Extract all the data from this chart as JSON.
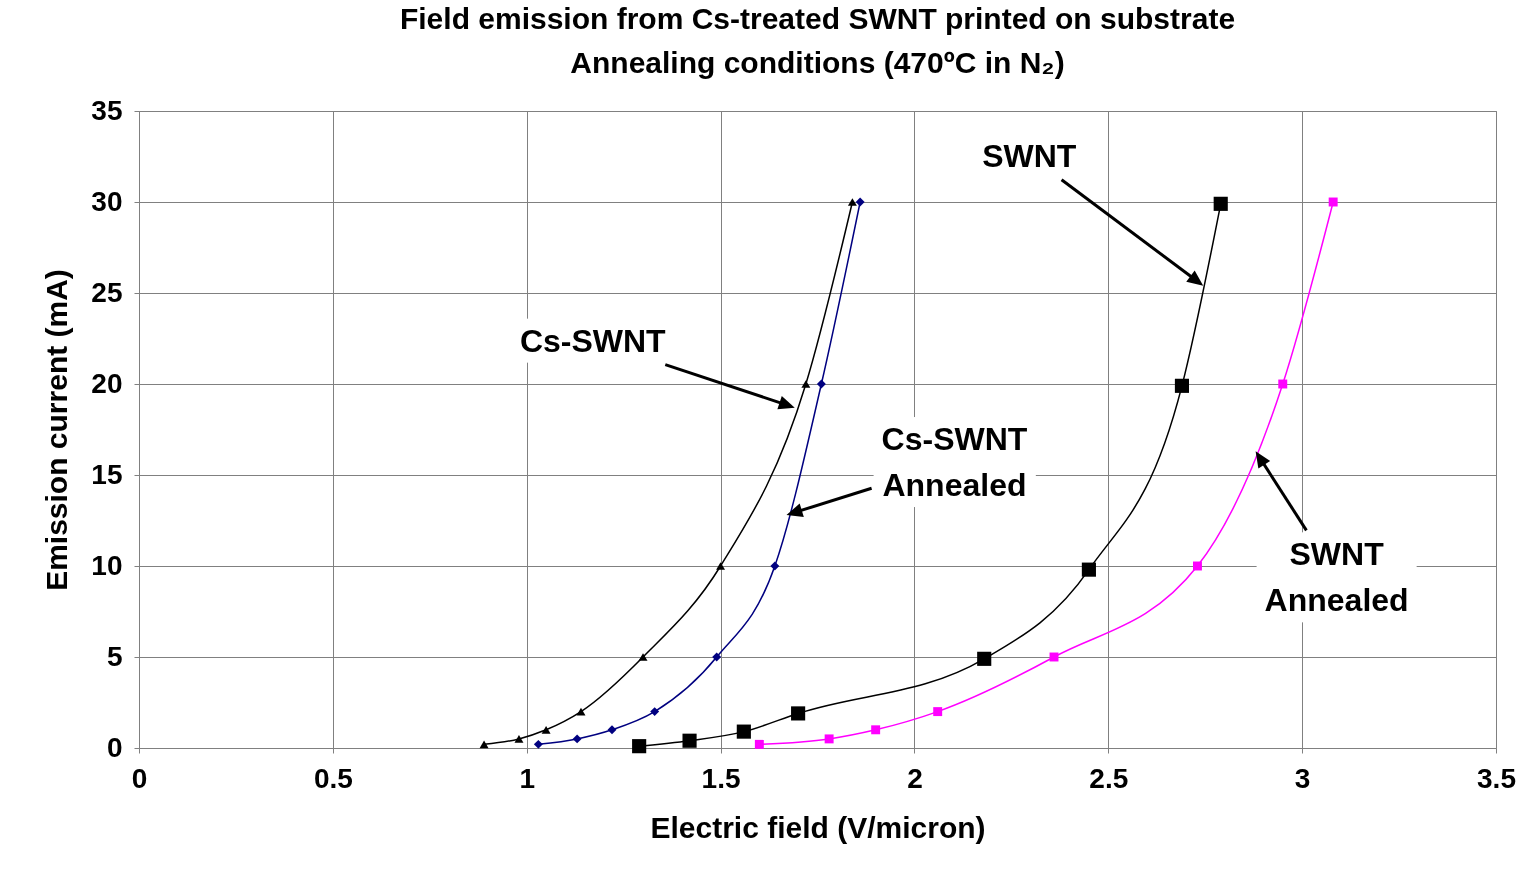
{
  "chart_data": {
    "type": "line",
    "title": "Field emission from Cs-treated SWNT printed on substrate",
    "subtitle": "Annealing conditions (470ºC in N₂)",
    "xlabel": "Electric field (V/micron)",
    "ylabel": "Emission current (mA)",
    "xlim": [
      0,
      3.5
    ],
    "xticks": [
      0,
      0.5,
      1,
      1.5,
      2,
      2.5,
      3,
      3.5
    ],
    "ylim": [
      0,
      35
    ],
    "yticks": [
      0,
      5,
      10,
      15,
      20,
      25,
      30,
      35
    ],
    "grid": true,
    "series": [
      {
        "color": "#000000",
        "marker": "triangle",
        "x": [
          0.89,
          0.98,
          1.05,
          1.14,
          1.3,
          1.5,
          1.72,
          1.84
        ],
        "values": [
          0.2,
          0.5,
          1,
          2,
          5,
          10,
          20,
          30
        ]
      },
      {
        "color": "#000080",
        "marker": "diamond",
        "x": [
          1.03,
          1.13,
          1.22,
          1.33,
          1.49,
          1.64,
          1.76,
          1.86
        ],
        "values": [
          0.2,
          0.5,
          1,
          2,
          5,
          10,
          20,
          30
        ]
      },
      {
        "color": "#000000",
        "marker": "square",
        "x": [
          1.29,
          1.42,
          1.56,
          1.7,
          2.18,
          2.45,
          2.69,
          2.79
        ],
        "values": [
          0.1,
          0.4,
          0.9,
          1.9,
          4.9,
          9.8,
          19.9,
          29.9
        ]
      },
      {
        "color": "#ff00ff",
        "marker": "square",
        "x": [
          1.6,
          1.78,
          1.9,
          2.06,
          2.36,
          2.73,
          2.95,
          3.08
        ],
        "values": [
          0.2,
          0.5,
          1,
          2,
          5,
          10,
          20,
          30
        ]
      }
    ],
    "annotations": [
      "Cs-SWNT",
      {
        "text": "Cs-SWNT Annealed",
        "x": 1.67,
        "y": 12.8
      },
      "SWNT",
      {
        "text": "SWNT Annealed",
        "x": 2.88,
        "y": 16.3
      }
    ]
  }
}
